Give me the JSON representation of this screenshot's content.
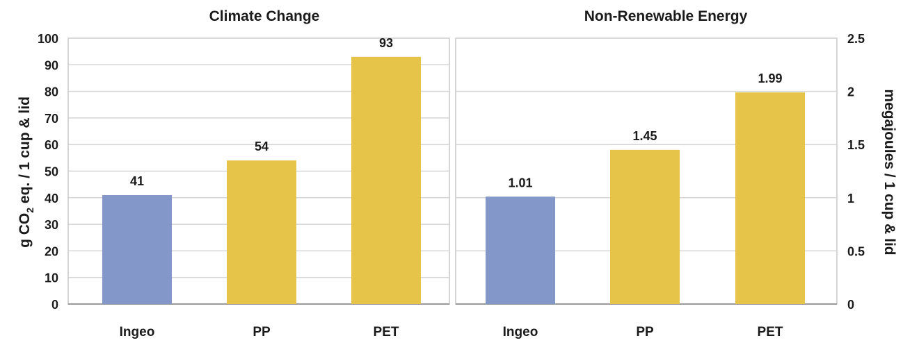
{
  "chart_data": [
    {
      "type": "bar",
      "title": "Climate Change",
      "xlabel": "",
      "ylabel_parts": [
        "g CO",
        "2",
        " eq. / 1 cup & lid"
      ],
      "categories": [
        "Ingeo",
        "PP",
        "PET"
      ],
      "values": [
        41,
        54,
        93
      ],
      "data_labels": [
        "41",
        "54",
        "93"
      ],
      "bar_colors": [
        "#8497c9",
        "#e6c44a",
        "#e6c44a"
      ],
      "ylim": [
        0,
        100
      ],
      "yticks": [
        0,
        10,
        20,
        30,
        40,
        50,
        60,
        70,
        80,
        90,
        100
      ],
      "ytick_labels": [
        "0",
        "10",
        "20",
        "30",
        "40",
        "50",
        "60",
        "70",
        "80",
        "90",
        "100"
      ],
      "yaxis_side": "left",
      "grid": true
    },
    {
      "type": "bar",
      "title": "Non-Renewable Energy",
      "xlabel": "",
      "ylabel": "megajoules / 1 cup & lid",
      "categories": [
        "Ingeo",
        "PP",
        "PET"
      ],
      "values": [
        1.01,
        1.45,
        1.99
      ],
      "data_labels": [
        "1.01",
        "1.45",
        "1.99"
      ],
      "bar_colors": [
        "#8497c9",
        "#e6c44a",
        "#e6c44a"
      ],
      "ylim": [
        0,
        2.5
      ],
      "yticks": [
        0,
        0.5,
        1,
        1.5,
        2,
        2.5
      ],
      "ytick_labels": [
        "0",
        "0.5",
        "1",
        "1.5",
        "2",
        "2.5"
      ],
      "yaxis_side": "right",
      "grid": true
    }
  ]
}
